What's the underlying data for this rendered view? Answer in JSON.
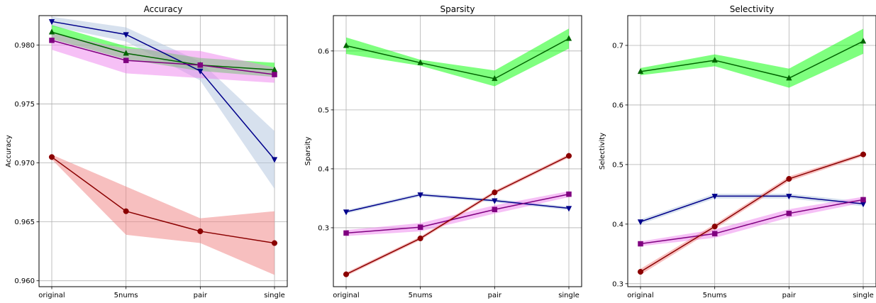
{
  "chart_data": [
    {
      "type": "line",
      "title": "Accuracy",
      "xlabel": "",
      "ylabel": "Accuracy",
      "categories": [
        "original",
        "5nums",
        "pair",
        "single"
      ],
      "ylim": [
        0.9595,
        0.9825
      ],
      "yticks": [
        0.96,
        0.965,
        0.97,
        0.975,
        0.98
      ],
      "ytick_labels": [
        "0.960",
        "0.965",
        "0.970",
        "0.975",
        "0.980"
      ],
      "grid": true,
      "series": [
        {
          "color": "#00008b",
          "band_color": "#b0c4de",
          "marker": "triangle-down",
          "values": [
            0.982,
            0.9809,
            0.9778,
            0.9703
          ],
          "lower": [
            0.9816,
            0.9803,
            0.977,
            0.9678
          ],
          "upper": [
            0.9824,
            0.9815,
            0.9786,
            0.9727
          ]
        },
        {
          "color": "#006400",
          "band_color": "#00ff00",
          "marker": "triangle-up",
          "values": [
            0.9811,
            0.9793,
            0.9783,
            0.9779
          ],
          "lower": [
            0.9805,
            0.9788,
            0.9778,
            0.9773
          ],
          "upper": [
            0.9817,
            0.9799,
            0.9789,
            0.9785
          ]
        },
        {
          "color": "#800080",
          "band_color": "#ee82ee",
          "marker": "square",
          "values": [
            0.9804,
            0.9787,
            0.9783,
            0.9775
          ],
          "lower": [
            0.9796,
            0.9776,
            0.9772,
            0.9768
          ],
          "upper": [
            0.981,
            0.9797,
            0.9795,
            0.9781
          ]
        },
        {
          "color": "#8b0000",
          "band_color": "#f08080",
          "marker": "circle",
          "values": [
            0.9705,
            0.9659,
            0.9642,
            0.9632
          ],
          "lower": [
            0.9703,
            0.9639,
            0.9632,
            0.9605
          ],
          "upper": [
            0.9707,
            0.968,
            0.9653,
            0.9659
          ]
        }
      ]
    },
    {
      "type": "line",
      "title": "Sparsity",
      "xlabel": "",
      "ylabel": "Sparsity",
      "categories": [
        "original",
        "5nums",
        "pair",
        "single"
      ],
      "ylim": [
        0.2,
        0.66
      ],
      "yticks": [
        0.3,
        0.4,
        0.5,
        0.6
      ],
      "ytick_labels": [
        "0.3",
        "0.4",
        "0.5",
        "0.6"
      ],
      "grid": true,
      "series": [
        {
          "color": "#006400",
          "band_color": "#00ff00",
          "marker": "triangle-up",
          "values": [
            0.609,
            0.58,
            0.553,
            0.621
          ],
          "lower": [
            0.595,
            0.575,
            0.54,
            0.604
          ],
          "upper": [
            0.623,
            0.585,
            0.567,
            0.638
          ]
        },
        {
          "color": "#00008b",
          "band_color": "#b0c4de",
          "marker": "triangle-down",
          "values": [
            0.327,
            0.356,
            0.346,
            0.333
          ],
          "lower": [
            0.324,
            0.353,
            0.343,
            0.33
          ],
          "upper": [
            0.33,
            0.359,
            0.349,
            0.336
          ]
        },
        {
          "color": "#800080",
          "band_color": "#ee82ee",
          "marker": "square",
          "values": [
            0.291,
            0.301,
            0.331,
            0.357
          ],
          "lower": [
            0.286,
            0.294,
            0.324,
            0.352
          ],
          "upper": [
            0.296,
            0.308,
            0.338,
            0.362
          ]
        },
        {
          "color": "#8b0000",
          "band_color": "#f08080",
          "marker": "circle",
          "values": [
            0.221,
            0.282,
            0.36,
            0.422
          ],
          "lower": [
            0.218,
            0.279,
            0.357,
            0.419
          ],
          "upper": [
            0.224,
            0.285,
            0.363,
            0.425
          ]
        }
      ]
    },
    {
      "type": "line",
      "title": "Selectivity",
      "xlabel": "",
      "ylabel": "Selectivity",
      "categories": [
        "original",
        "5nums",
        "pair",
        "single"
      ],
      "ylim": [
        0.295,
        0.75
      ],
      "yticks": [
        0.3,
        0.4,
        0.5,
        0.6,
        0.7
      ],
      "ytick_labels": [
        "0.3",
        "0.4",
        "0.5",
        "0.6",
        "0.7"
      ],
      "grid": true,
      "series": [
        {
          "color": "#006400",
          "band_color": "#00ff00",
          "marker": "triangle-up",
          "values": [
            0.656,
            0.675,
            0.645,
            0.707
          ],
          "lower": [
            0.65,
            0.665,
            0.629,
            0.686
          ],
          "upper": [
            0.662,
            0.685,
            0.661,
            0.728
          ]
        },
        {
          "color": "#00008b",
          "band_color": "#b0c4de",
          "marker": "triangle-down",
          "values": [
            0.404,
            0.447,
            0.447,
            0.434
          ],
          "lower": [
            0.4,
            0.443,
            0.443,
            0.43
          ],
          "upper": [
            0.408,
            0.451,
            0.451,
            0.438
          ]
        },
        {
          "color": "#800080",
          "band_color": "#ee82ee",
          "marker": "square",
          "values": [
            0.367,
            0.384,
            0.418,
            0.441
          ],
          "lower": [
            0.363,
            0.377,
            0.411,
            0.436
          ],
          "upper": [
            0.371,
            0.391,
            0.425,
            0.446
          ]
        },
        {
          "color": "#8b0000",
          "band_color": "#f08080",
          "marker": "circle",
          "values": [
            0.32,
            0.396,
            0.476,
            0.517
          ],
          "lower": [
            0.315,
            0.392,
            0.472,
            0.514
          ],
          "upper": [
            0.325,
            0.4,
            0.48,
            0.52
          ]
        }
      ]
    }
  ]
}
